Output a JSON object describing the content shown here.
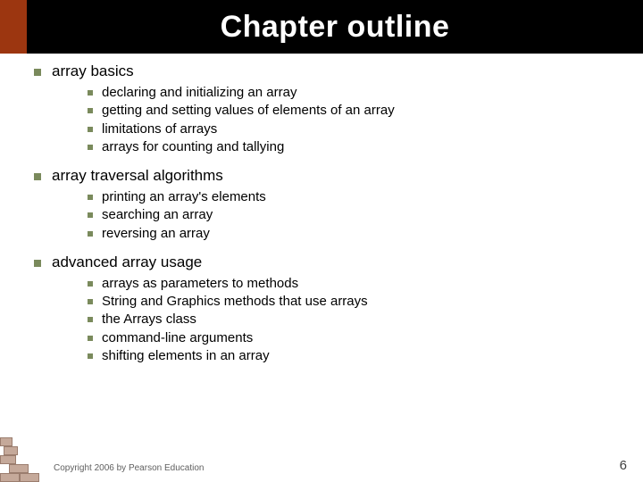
{
  "colors": {
    "title_band_bg": "#000000",
    "title_band_accent": "#9c3610",
    "title_text": "#ffffff",
    "bullet": "#7a8a5c",
    "body_text": "#000000",
    "footer_text": "#606060",
    "pagenum_text": "#404040",
    "brick_fill": "#c5a99a",
    "brick_border": "#9b7d6e",
    "page_bg": "#ffffff"
  },
  "typography": {
    "title_fontsize": 34,
    "level1_fontsize": 17,
    "level2_fontsize": 15,
    "footer_fontsize": 10,
    "pagenum_fontsize": 15,
    "font_family": "Verdana"
  },
  "slide": {
    "title": "Chapter outline",
    "sections": [
      {
        "heading": "array basics",
        "items": [
          "declaring and initializing an array",
          "getting and setting values of elements of an array",
          "limitations of arrays",
          "arrays for counting and tallying"
        ]
      },
      {
        "heading": "array traversal algorithms",
        "items": [
          "printing an array's elements",
          "searching an array",
          "reversing an array"
        ]
      },
      {
        "heading": "advanced array usage",
        "items": [
          "arrays as parameters to methods",
          "String and Graphics methods that use arrays",
          "the Arrays class",
          "command-line arguments",
          "shifting elements in an array"
        ]
      }
    ],
    "footer": "Copyright 2006 by Pearson Education",
    "page_number": "6"
  }
}
